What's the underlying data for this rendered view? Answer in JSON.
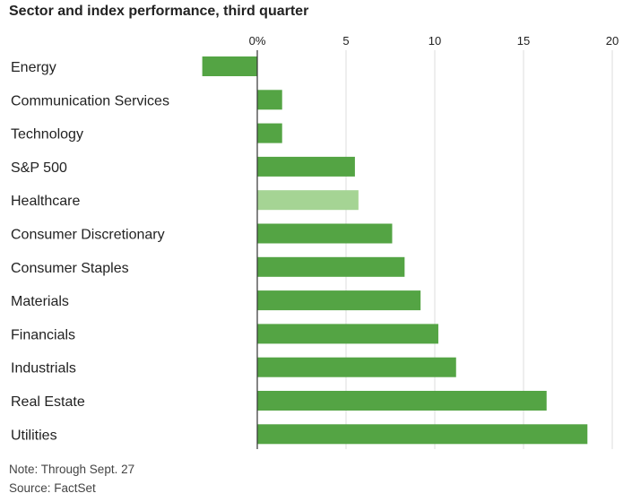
{
  "title": "Sector and index performance, third quarter",
  "note": "Note: Through Sept. 27",
  "source": "Source: FactSet",
  "colors": {
    "bar": "#54a444",
    "highlight": "#a5d494",
    "grid": "#dddddd",
    "axis": "#333333"
  },
  "chart_data": {
    "type": "bar",
    "orientation": "horizontal",
    "title": "Sector and index performance, third quarter",
    "xlabel": "",
    "ylabel": "",
    "xlim": [
      -3.2,
      20
    ],
    "ticks": [
      {
        "value": 0,
        "label": "0%"
      },
      {
        "value": 5,
        "label": "5"
      },
      {
        "value": 10,
        "label": "10"
      },
      {
        "value": 15,
        "label": "15"
      },
      {
        "value": 20,
        "label": "20"
      }
    ],
    "categories": [
      "Energy",
      "Communication Services",
      "Technology",
      "S&P 500",
      "Healthcare",
      "Consumer Discretionary",
      "Consumer Staples",
      "Materials",
      "Financials",
      "Industrials",
      "Real Estate",
      "Utilities"
    ],
    "values": [
      -3.1,
      1.4,
      1.4,
      5.5,
      5.7,
      7.6,
      8.3,
      9.2,
      10.2,
      11.2,
      16.3,
      18.6
    ],
    "highlighted": [
      "Healthcare"
    ],
    "grid": true
  }
}
